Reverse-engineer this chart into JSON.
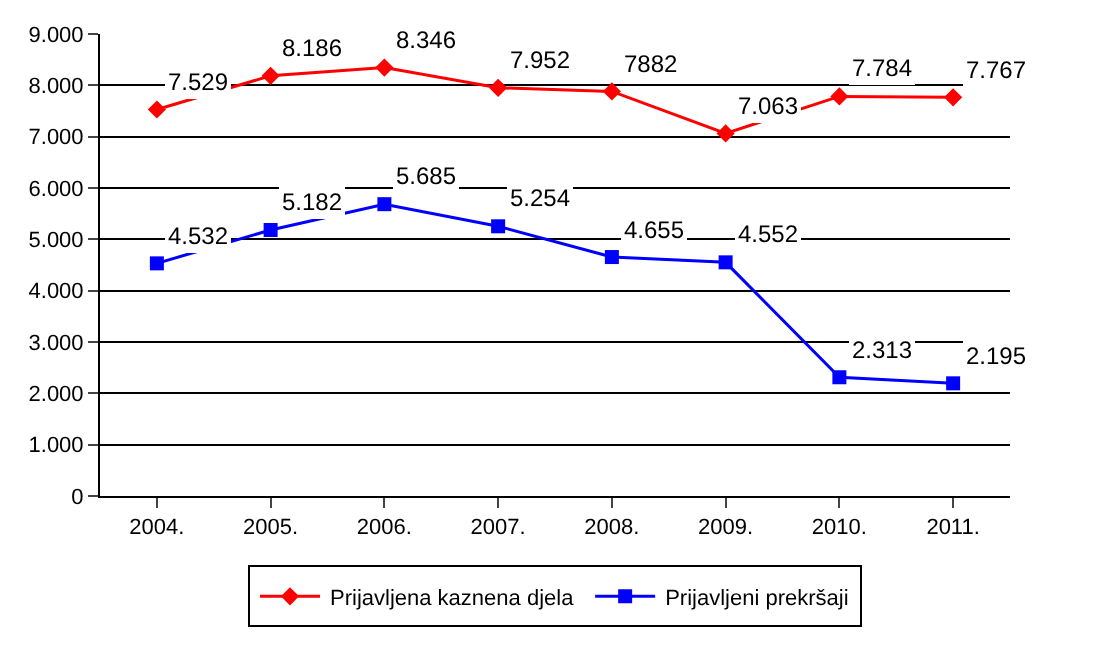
{
  "chart_data": {
    "type": "line",
    "categories": [
      "2004.",
      "2005.",
      "2006.",
      "2007.",
      "2008.",
      "2009.",
      "2010.",
      "2011."
    ],
    "series": [
      {
        "name": "Prijavljena kaznena djela",
        "color": "#ff0000",
        "marker": "diamond",
        "values": [
          7529,
          8186,
          8346,
          7952,
          7882,
          7063,
          7784,
          7767
        ],
        "value_labels": [
          "7.529",
          "8.186",
          "8.346",
          "7.952",
          "7882",
          "7.063",
          "7.784",
          "7.767"
        ]
      },
      {
        "name": "Prijavljeni prekršaji",
        "color": "#0000ff",
        "marker": "square",
        "values": [
          4532,
          5182,
          5685,
          5254,
          4655,
          4552,
          2313,
          2195
        ],
        "value_labels": [
          "4.532",
          "5.182",
          "5.685",
          "5.254",
          "4.655",
          "4.552",
          "2.313",
          "2.195"
        ]
      }
    ],
    "ylim": [
      0,
      9000
    ],
    "yticks": [
      {
        "value": 0,
        "label": "0"
      },
      {
        "value": 1000,
        "label": "1.000"
      },
      {
        "value": 2000,
        "label": "2.000"
      },
      {
        "value": 3000,
        "label": "3.000"
      },
      {
        "value": 4000,
        "label": "4.000"
      },
      {
        "value": 5000,
        "label": "5.000"
      },
      {
        "value": 6000,
        "label": "6.000"
      },
      {
        "value": 7000,
        "label": "7.000"
      },
      {
        "value": 8000,
        "label": "8.000"
      },
      {
        "value": 9000,
        "label": "9.000"
      }
    ],
    "grid": "y",
    "legend": "bottom",
    "line_style": "solid"
  }
}
